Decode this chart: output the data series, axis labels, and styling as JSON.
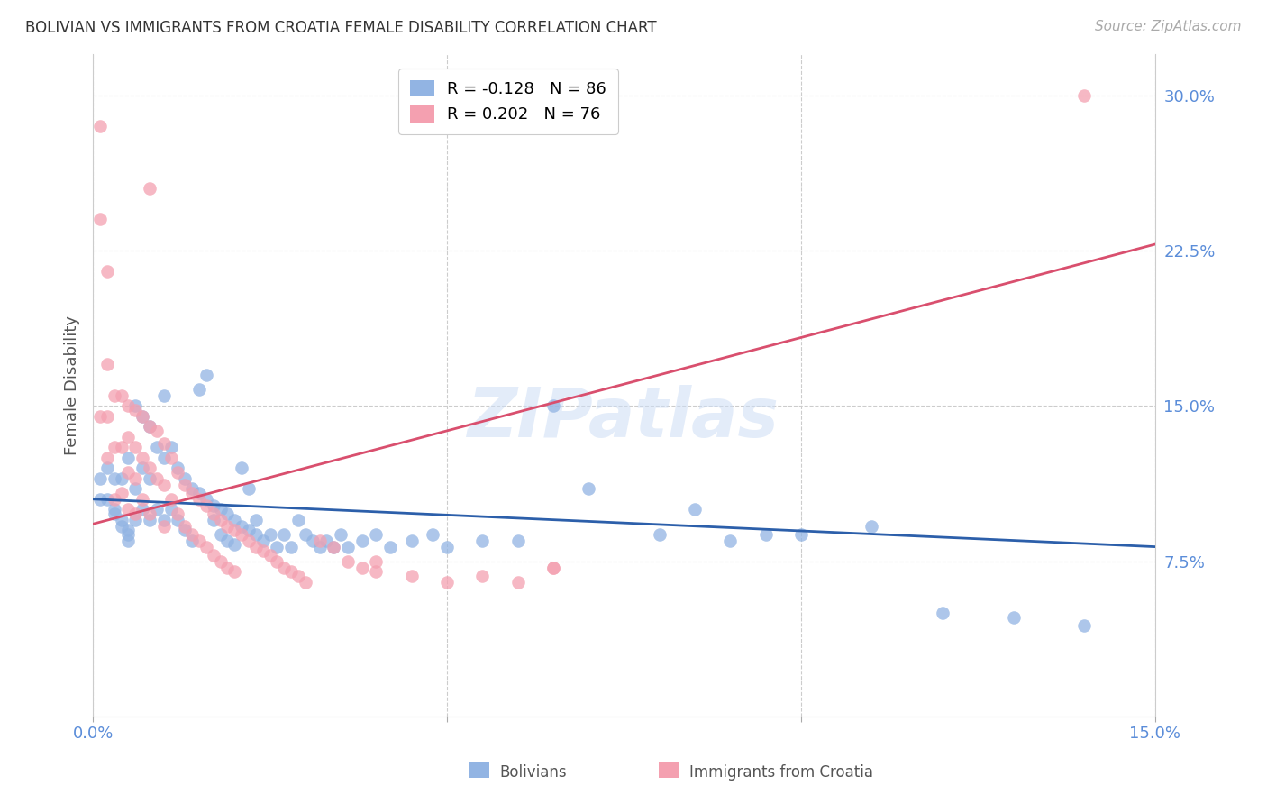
{
  "title": "BOLIVIAN VS IMMIGRANTS FROM CROATIA FEMALE DISABILITY CORRELATION CHART",
  "source": "Source: ZipAtlas.com",
  "ylabel": "Female Disability",
  "x_min": 0.0,
  "x_max": 0.15,
  "y_min": 0.0,
  "y_max": 0.32,
  "y_ticks": [
    0.075,
    0.15,
    0.225,
    0.3
  ],
  "y_tick_labels": [
    "7.5%",
    "15.0%",
    "22.5%",
    "30.0%"
  ],
  "bolivians_color": "#92b4e3",
  "croatia_color": "#f4a0b0",
  "bolivians_line_color": "#2c5faa",
  "croatia_line_color": "#d94f6e",
  "legend_bolivians_R": "-0.128",
  "legend_bolivians_N": "86",
  "legend_croatia_R": "0.202",
  "legend_croatia_N": "76",
  "watermark": "ZIPatlas",
  "blue_line_x": [
    0.0,
    0.15
  ],
  "blue_line_y": [
    0.105,
    0.082
  ],
  "pink_line_x": [
    0.0,
    0.15
  ],
  "pink_line_y": [
    0.093,
    0.228
  ],
  "bolivians_scatter_x": [
    0.001,
    0.001,
    0.002,
    0.002,
    0.003,
    0.003,
    0.003,
    0.004,
    0.004,
    0.004,
    0.005,
    0.005,
    0.005,
    0.005,
    0.006,
    0.006,
    0.006,
    0.007,
    0.007,
    0.007,
    0.008,
    0.008,
    0.008,
    0.009,
    0.009,
    0.01,
    0.01,
    0.01,
    0.011,
    0.011,
    0.012,
    0.012,
    0.013,
    0.013,
    0.014,
    0.014,
    0.015,
    0.015,
    0.016,
    0.016,
    0.017,
    0.017,
    0.018,
    0.018,
    0.019,
    0.019,
    0.02,
    0.02,
    0.021,
    0.021,
    0.022,
    0.022,
    0.023,
    0.023,
    0.024,
    0.025,
    0.026,
    0.027,
    0.028,
    0.029,
    0.03,
    0.031,
    0.032,
    0.033,
    0.034,
    0.035,
    0.036,
    0.038,
    0.04,
    0.042,
    0.045,
    0.048,
    0.05,
    0.055,
    0.06,
    0.065,
    0.07,
    0.08,
    0.09,
    0.1,
    0.11,
    0.12,
    0.13,
    0.14,
    0.095,
    0.085
  ],
  "bolivians_scatter_y": [
    0.115,
    0.105,
    0.12,
    0.105,
    0.1,
    0.098,
    0.115,
    0.095,
    0.092,
    0.115,
    0.09,
    0.088,
    0.085,
    0.125,
    0.11,
    0.095,
    0.15,
    0.12,
    0.1,
    0.145,
    0.115,
    0.095,
    0.14,
    0.13,
    0.1,
    0.125,
    0.095,
    0.155,
    0.13,
    0.1,
    0.12,
    0.095,
    0.115,
    0.09,
    0.11,
    0.085,
    0.108,
    0.158,
    0.105,
    0.165,
    0.102,
    0.095,
    0.1,
    0.088,
    0.098,
    0.085,
    0.095,
    0.083,
    0.092,
    0.12,
    0.09,
    0.11,
    0.088,
    0.095,
    0.085,
    0.088,
    0.082,
    0.088,
    0.082,
    0.095,
    0.088,
    0.085,
    0.082,
    0.085,
    0.082,
    0.088,
    0.082,
    0.085,
    0.088,
    0.082,
    0.085,
    0.088,
    0.082,
    0.085,
    0.085,
    0.15,
    0.11,
    0.088,
    0.085,
    0.088,
    0.092,
    0.05,
    0.048,
    0.044,
    0.088,
    0.1
  ],
  "croatia_scatter_x": [
    0.001,
    0.001,
    0.002,
    0.002,
    0.002,
    0.003,
    0.003,
    0.003,
    0.004,
    0.004,
    0.004,
    0.005,
    0.005,
    0.005,
    0.005,
    0.006,
    0.006,
    0.006,
    0.006,
    0.007,
    0.007,
    0.007,
    0.008,
    0.008,
    0.008,
    0.009,
    0.009,
    0.01,
    0.01,
    0.01,
    0.011,
    0.011,
    0.012,
    0.012,
    0.013,
    0.013,
    0.014,
    0.014,
    0.015,
    0.015,
    0.016,
    0.016,
    0.017,
    0.017,
    0.018,
    0.018,
    0.019,
    0.019,
    0.02,
    0.02,
    0.021,
    0.022,
    0.023,
    0.024,
    0.025,
    0.026,
    0.027,
    0.028,
    0.029,
    0.03,
    0.032,
    0.034,
    0.036,
    0.038,
    0.04,
    0.045,
    0.05,
    0.055,
    0.06,
    0.065,
    0.04,
    0.008,
    0.002,
    0.001,
    0.065,
    0.14
  ],
  "croatia_scatter_y": [
    0.285,
    0.145,
    0.17,
    0.145,
    0.125,
    0.155,
    0.13,
    0.105,
    0.155,
    0.13,
    0.108,
    0.15,
    0.135,
    0.118,
    0.1,
    0.148,
    0.13,
    0.115,
    0.098,
    0.145,
    0.125,
    0.105,
    0.14,
    0.12,
    0.098,
    0.138,
    0.115,
    0.132,
    0.112,
    0.092,
    0.125,
    0.105,
    0.118,
    0.098,
    0.112,
    0.092,
    0.108,
    0.088,
    0.105,
    0.085,
    0.102,
    0.082,
    0.098,
    0.078,
    0.095,
    0.075,
    0.092,
    0.072,
    0.09,
    0.07,
    0.088,
    0.085,
    0.082,
    0.08,
    0.078,
    0.075,
    0.072,
    0.07,
    0.068,
    0.065,
    0.085,
    0.082,
    0.075,
    0.072,
    0.07,
    0.068,
    0.065,
    0.068,
    0.065,
    0.072,
    0.075,
    0.255,
    0.215,
    0.24,
    0.072,
    0.3
  ]
}
